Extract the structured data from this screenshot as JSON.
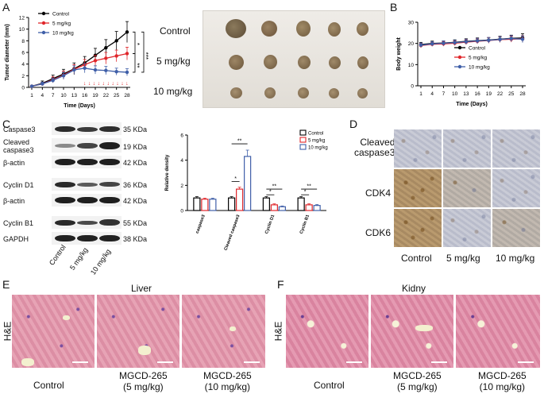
{
  "panels": {
    "a": "A",
    "b": "B",
    "c": "C",
    "d": "D",
    "e": "E",
    "f": "F"
  },
  "chart_data": [
    {
      "id": "A",
      "type": "line",
      "ylabel": "Tumor diameter (mm)",
      "xlabel": "Time (Days)",
      "x": [
        1,
        4,
        7,
        10,
        13,
        16,
        19,
        22,
        25,
        28
      ],
      "ylim": [
        0,
        12
      ],
      "yticks": [
        0,
        2,
        4,
        6,
        8,
        10,
        12
      ],
      "series": [
        {
          "name": "Control",
          "color": "#000000",
          "marker": "circle",
          "values": [
            0.2,
            0.7,
            1.5,
            2.3,
            3.2,
            4.2,
            5.5,
            6.8,
            8.0,
            9.5
          ],
          "errors": [
            0.1,
            0.4,
            0.6,
            0.8,
            1.0,
            1.1,
            1.2,
            1.4,
            1.6,
            1.8
          ]
        },
        {
          "name": "5 mg/kg",
          "color": "#e0262b",
          "marker": "square",
          "values": [
            0.2,
            0.6,
            1.3,
            2.1,
            3.1,
            3.9,
            4.6,
            5.0,
            5.4,
            5.8
          ],
          "errors": [
            0.1,
            0.3,
            0.5,
            0.7,
            0.8,
            0.9,
            0.9,
            1.0,
            1.0,
            1.1
          ]
        },
        {
          "name": "10 mg/kg",
          "color": "#3f5fa8",
          "marker": "triangle",
          "values": [
            0.2,
            0.6,
            1.2,
            2.0,
            3.0,
            3.3,
            3.0,
            2.9,
            2.7,
            2.6
          ],
          "errors": [
            0.1,
            0.3,
            0.4,
            0.6,
            0.7,
            0.8,
            0.7,
            0.7,
            0.6,
            0.6
          ]
        }
      ],
      "sig": [
        "*",
        "**",
        "***"
      ]
    },
    {
      "id": "B",
      "type": "line",
      "ylabel": "Body weight",
      "xlabel": "Time (Days)",
      "x": [
        1,
        4,
        7,
        10,
        13,
        16,
        19,
        22,
        25,
        28
      ],
      "ylim": [
        0,
        30
      ],
      "yticks": [
        0,
        10,
        20,
        30
      ],
      "series": [
        {
          "name": "Control",
          "color": "#000000",
          "values": [
            19.5,
            20.0,
            20.2,
            20.5,
            21.0,
            21.3,
            21.6,
            22.0,
            22.4,
            22.6
          ],
          "errors": [
            1.0,
            1.1,
            1.0,
            1.2,
            1.2,
            1.3,
            1.2,
            1.4,
            1.5,
            2.0
          ]
        },
        {
          "name": "5 mg/kg",
          "color": "#e0262b",
          "values": [
            19.0,
            19.6,
            19.8,
            20.1,
            20.6,
            21.0,
            21.4,
            21.8,
            22.0,
            22.2
          ],
          "errors": [
            1.0,
            1.0,
            1.1,
            1.1,
            1.2,
            1.2,
            1.3,
            1.3,
            1.4,
            1.5
          ]
        },
        {
          "name": "10 mg/kg",
          "color": "#3f5fa8",
          "values": [
            19.2,
            19.8,
            20.1,
            20.4,
            20.8,
            21.2,
            21.5,
            21.9,
            22.3,
            22.0
          ],
          "errors": [
            1.0,
            1.0,
            1.1,
            1.1,
            1.2,
            1.2,
            1.3,
            1.3,
            1.4,
            1.6
          ]
        }
      ]
    },
    {
      "id": "C",
      "type": "bar",
      "ylabel": "Relative density",
      "categories": [
        "caspase3",
        "Cleaved caspase3",
        "Cyclin D1",
        "Cyclin B1"
      ],
      "ylim": [
        0,
        6
      ],
      "yticks": [
        0,
        2,
        4,
        6
      ],
      "series": [
        {
          "name": "Control",
          "color": "#000000",
          "values": [
            1.0,
            1.0,
            1.0,
            1.0
          ],
          "errors": [
            0.1,
            0.1,
            0.1,
            0.1
          ]
        },
        {
          "name": "5 mg/kg",
          "color": "#e0262b",
          "values": [
            0.9,
            1.7,
            0.45,
            0.45
          ],
          "errors": [
            0.08,
            0.15,
            0.08,
            0.08
          ]
        },
        {
          "name": "10 mg/kg",
          "color": "#3f5fa8",
          "values": [
            0.9,
            4.3,
            0.3,
            0.4
          ],
          "errors": [
            0.08,
            0.5,
            0.06,
            0.07
          ]
        }
      ],
      "sig": {
        "cleaved": [
          "*",
          "**"
        ],
        "cyclinD1": [
          "*",
          "**"
        ],
        "cyclinB1": [
          "*",
          "**"
        ]
      }
    }
  ],
  "tumor_photo": {
    "rows": [
      "Control",
      "5 mg/kg",
      "10 mg/kg"
    ]
  },
  "western": {
    "left_labels": [
      "Caspase3",
      "Cleaved\ncaspase3",
      "β-actin",
      "Cyclin D1",
      "β-actin",
      "Cyclin B1",
      "GAPDH"
    ],
    "cleaved_l1": "Cleaved",
    "cleaved_l2": "caspase3",
    "sizes": [
      "35 KDa",
      "19 KDa",
      "42 KDa",
      "36 KDa",
      "42 KDa",
      "55 KDa",
      "38 KDa"
    ],
    "lanes": [
      "Control",
      "5 mg/kg",
      "10 mg/kg"
    ]
  },
  "ihc": {
    "rows": [
      "Cleaved\ncaspase3",
      "CDK4",
      "CDK6"
    ],
    "row0_l1": "Cleaved",
    "row0_l2": "caspase3",
    "cols": [
      "Control",
      "5 mg/kg",
      "10 mg/kg"
    ]
  },
  "he_liver": {
    "title": "Liver",
    "stain": "H&E",
    "cols": [
      "Control",
      "MGCD-265\n(5 mg/kg)",
      "MGCD-265\n(10 mg/kg)"
    ],
    "c0": "Control",
    "c1a": "MGCD-265",
    "c1b": "(5 mg/kg)",
    "c2a": "MGCD-265",
    "c2b": "(10 mg/kg)"
  },
  "he_kidney": {
    "title": "Kidny",
    "stain": "H&E",
    "c0": "Control",
    "c1a": "MGCD-265",
    "c1b": "(5 mg/kg)",
    "c2a": "MGCD-265",
    "c2b": "(10 mg/kg)"
  }
}
